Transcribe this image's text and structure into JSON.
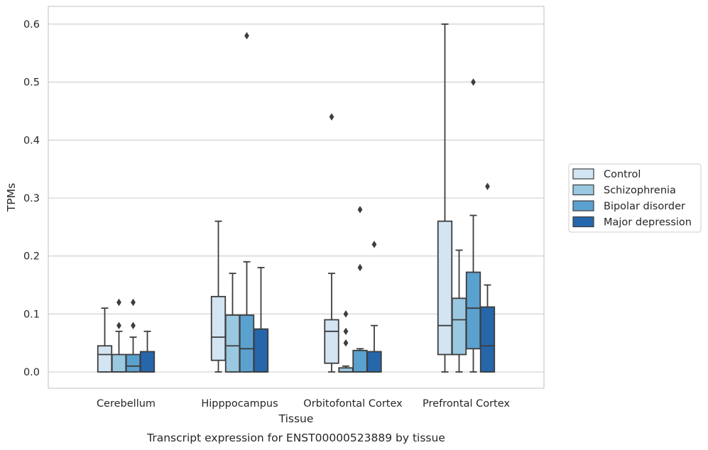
{
  "chart_data": {
    "type": "box",
    "title": "",
    "xlabel": "Tissue",
    "ylabel": "TPMs",
    "caption": "Transcript expression for ENST00000523889 by tissue",
    "ylim": [
      -0.03,
      0.63
    ],
    "yticks": [
      "0.0",
      "0.1",
      "0.2",
      "0.3",
      "0.4",
      "0.5",
      "0.6"
    ],
    "ytick_values": [
      0.0,
      0.1,
      0.2,
      0.3,
      0.4,
      0.5,
      0.6
    ],
    "grid": true,
    "legend_position": "right",
    "categories": [
      "Cerebellum",
      "Hipppocampus",
      "Orbitofontal Cortex",
      "Prefrontal Cortex"
    ],
    "series": [
      {
        "name": "Control",
        "color": "#d3e4f3",
        "boxes": [
          {
            "whislo": 0.0,
            "q1": 0.0,
            "med": 0.03,
            "q3": 0.045,
            "whishi": 0.11,
            "fliers": []
          },
          {
            "whislo": 0.0,
            "q1": 0.02,
            "med": 0.06,
            "q3": 0.13,
            "whishi": 0.26,
            "fliers": []
          },
          {
            "whislo": 0.0,
            "q1": 0.015,
            "med": 0.07,
            "q3": 0.09,
            "whishi": 0.17,
            "fliers": [
              0.44
            ]
          },
          {
            "whislo": 0.0,
            "q1": 0.03,
            "med": 0.08,
            "q3": 0.26,
            "whishi": 0.6,
            "fliers": []
          }
        ]
      },
      {
        "name": "Schizophrenia",
        "color": "#9ac8e0",
        "boxes": [
          {
            "whislo": 0.0,
            "q1": 0.0,
            "med": 0.0,
            "q3": 0.03,
            "whishi": 0.07,
            "fliers": [
              0.08,
              0.12
            ]
          },
          {
            "whislo": 0.0,
            "q1": 0.0,
            "med": 0.045,
            "q3": 0.098,
            "whishi": 0.17,
            "fliers": []
          },
          {
            "whislo": 0.0,
            "q1": 0.0,
            "med": 0.0,
            "q3": 0.007,
            "whishi": 0.01,
            "fliers": [
              0.05,
              0.07,
              0.1
            ]
          },
          {
            "whislo": 0.0,
            "q1": 0.03,
            "med": 0.09,
            "q3": 0.127,
            "whishi": 0.21,
            "fliers": []
          }
        ]
      },
      {
        "name": "Bipolar disorder",
        "color": "#5aa1cf",
        "boxes": [
          {
            "whislo": 0.0,
            "q1": 0.0,
            "med": 0.01,
            "q3": 0.03,
            "whishi": 0.06,
            "fliers": [
              0.08,
              0.12
            ]
          },
          {
            "whislo": 0.0,
            "q1": 0.0,
            "med": 0.04,
            "q3": 0.098,
            "whishi": 0.19,
            "fliers": [
              0.58
            ]
          },
          {
            "whislo": 0.0,
            "q1": 0.0,
            "med": 0.0,
            "q3": 0.037,
            "whishi": 0.04,
            "fliers": [
              0.18,
              0.28
            ]
          },
          {
            "whislo": 0.0,
            "q1": 0.04,
            "med": 0.11,
            "q3": 0.172,
            "whishi": 0.27,
            "fliers": [
              0.5
            ]
          }
        ]
      },
      {
        "name": "Major depression",
        "color": "#2666ab",
        "boxes": [
          {
            "whislo": 0.0,
            "q1": 0.0,
            "med": 0.0,
            "q3": 0.035,
            "whishi": 0.07,
            "fliers": []
          },
          {
            "whislo": 0.0,
            "q1": 0.0,
            "med": 0.0,
            "q3": 0.074,
            "whishi": 0.18,
            "fliers": []
          },
          {
            "whislo": 0.0,
            "q1": 0.0,
            "med": 0.0,
            "q3": 0.035,
            "whishi": 0.08,
            "fliers": [
              0.22
            ]
          },
          {
            "whislo": 0.0,
            "q1": 0.0,
            "med": 0.045,
            "q3": 0.112,
            "whishi": 0.15,
            "fliers": [
              0.32
            ]
          }
        ]
      }
    ]
  }
}
